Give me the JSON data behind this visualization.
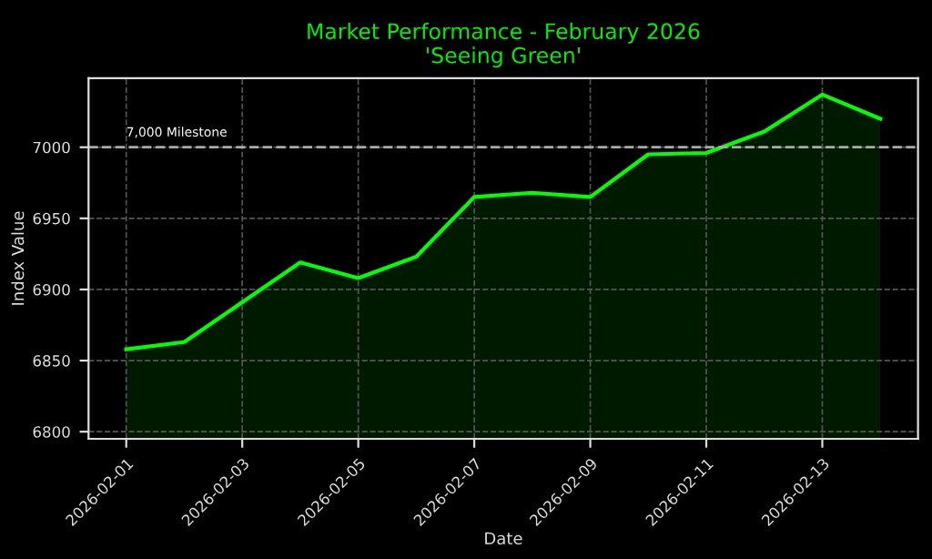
{
  "chart_data": {
    "type": "area",
    "title": "Market Performance - February 2026\n'Seeing Green'",
    "xlabel": "Date",
    "ylabel": "Index Value",
    "x": [
      "2026-02-01",
      "2026-02-02",
      "2026-02-03",
      "2026-02-04",
      "2026-02-05",
      "2026-02-06",
      "2026-02-07",
      "2026-02-08",
      "2026-02-09",
      "2026-02-10",
      "2026-02-11",
      "2026-02-12",
      "2026-02-13",
      "2026-02-14"
    ],
    "series": [
      {
        "color": "#00ff00",
        "values": [
          6858,
          6863,
          6891,
          6919,
          6908,
          6923,
          6965,
          6968,
          6965,
          6995,
          6996,
          7011,
          7037,
          7020
        ]
      }
    ],
    "xlim": [
      "2026-01-31T08:24",
      "2026-02-14T15:36"
    ],
    "xticks": [
      "2026-02-01",
      "2026-02-03",
      "2026-02-05",
      "2026-02-07",
      "2026-02-09",
      "2026-02-11",
      "2026-02-13"
    ],
    "ylim": [
      6795,
      7048.5
    ],
    "yticks": [
      6800,
      6850,
      6900,
      6950,
      7000
    ],
    "ref_lines": [
      {
        "axis": "y",
        "value": 7000,
        "label": "7,000 Milestone",
        "color": "#aaaaaa",
        "line_style": "dashed"
      }
    ],
    "grid": true,
    "line_style": "solid",
    "marker": "none"
  }
}
